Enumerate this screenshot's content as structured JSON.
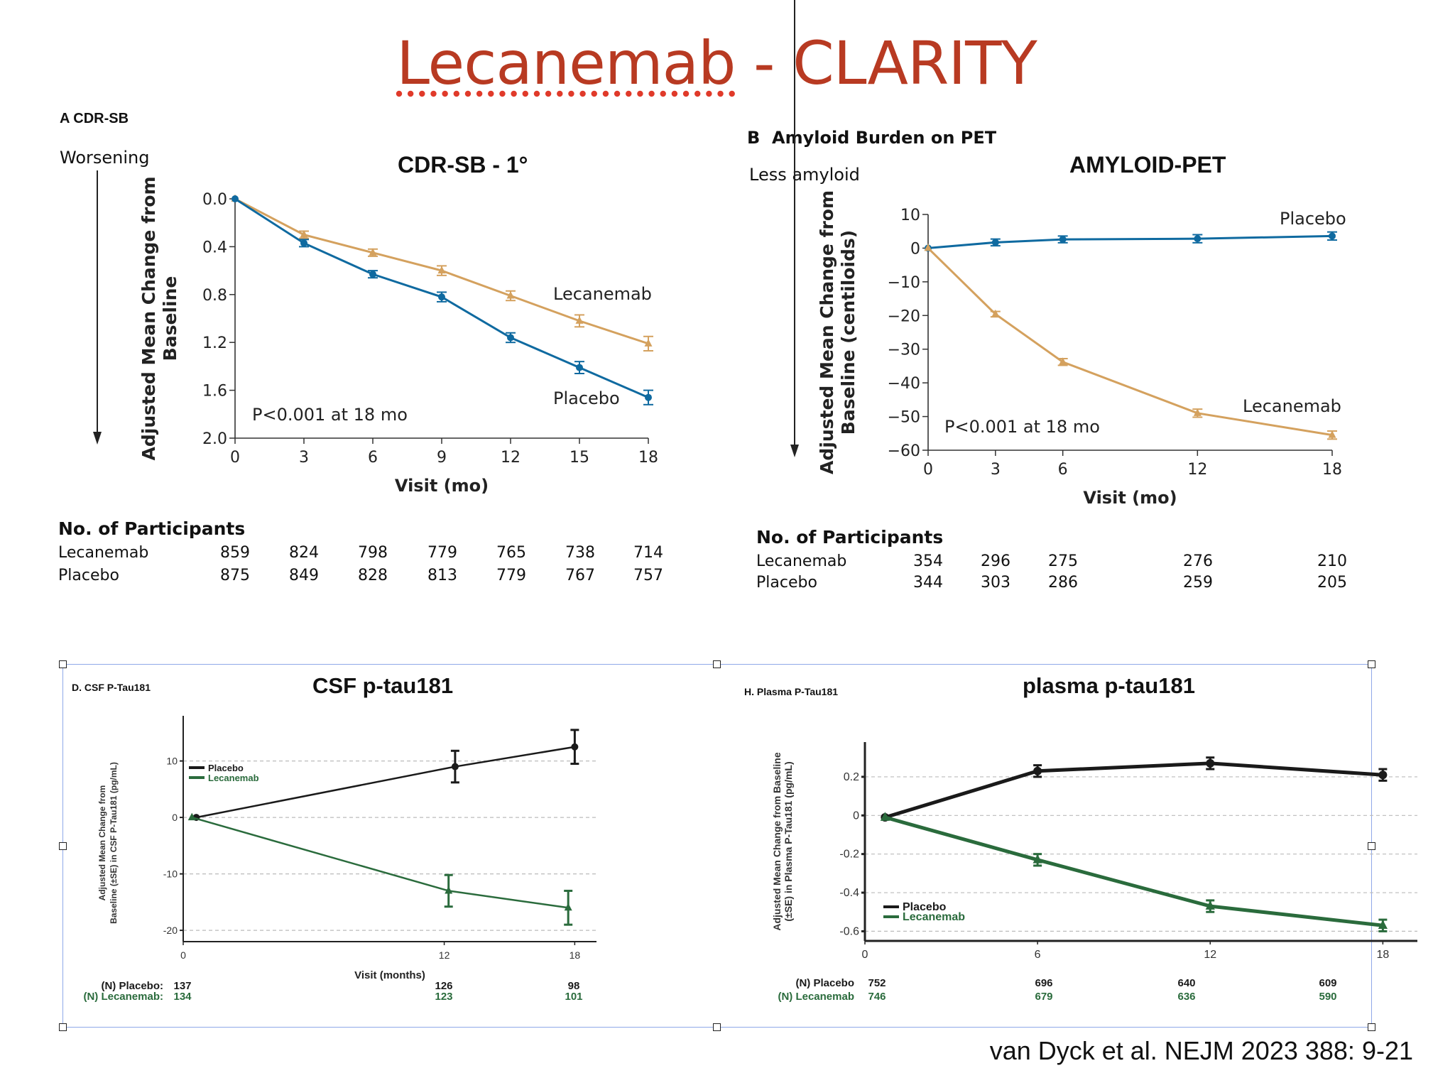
{
  "slide": {
    "title_part1": "Lecanemab",
    "title_part2": " - CLARITY",
    "citation": "van Dyck et al. NEJM 2023 388: 9-21"
  },
  "colors": {
    "title": "#b83a22",
    "lecanemab_nejm": "#d4a15e",
    "placebo_nejm": "#0f6aa0",
    "placebo_tau": "#1a1a1a",
    "lecanemab_tau": "#2a6b3c",
    "selection": "#8fa8e8"
  },
  "panelA": {
    "label": "A CDR-SB",
    "arrow_label": "Worsening",
    "participants": {
      "heading": "No. of Participants",
      "rows": [
        {
          "name": "Lecanemab",
          "values": [
            "859",
            "824",
            "798",
            "779",
            "765",
            "738",
            "714"
          ]
        },
        {
          "name": "Placebo",
          "values": [
            "875",
            "849",
            "828",
            "813",
            "779",
            "767",
            "757"
          ]
        }
      ]
    }
  },
  "panelB": {
    "label_letter": "B",
    "label_text": "Amyloid Burden on PET",
    "arrow_label": "Less amyloid",
    "participants": {
      "heading": "No. of Participants",
      "rows": [
        {
          "name": "Lecanemab",
          "values": [
            "354",
            "296",
            "275",
            "276",
            "210"
          ]
        },
        {
          "name": "Placebo",
          "values": [
            "344",
            "303",
            "286",
            "259",
            "205"
          ]
        }
      ]
    }
  },
  "panelD": {
    "label": "D. CSF P-Tau181",
    "n_rows": [
      {
        "name": "(N) Placebo:",
        "values": [
          "137",
          "126",
          "98"
        ]
      },
      {
        "name": "(N) Lecanemab:",
        "values": [
          "134",
          "123",
          "101"
        ]
      }
    ]
  },
  "panelH": {
    "label": "H. Plasma P-Tau181",
    "n_rows": [
      {
        "name": "(N) Placebo",
        "values": [
          "752",
          "696",
          "640",
          "609"
        ]
      },
      {
        "name": "(N) Lecanemab",
        "values": [
          "746",
          "679",
          "636",
          "590"
        ]
      }
    ]
  },
  "chart_data": [
    {
      "id": "cdrsb",
      "type": "line",
      "title": "CDR-SB - 1°",
      "xlabel": "Visit (mo)",
      "ylabel": "Adjusted Mean Change from Baseline",
      "x": [
        0,
        3,
        6,
        9,
        12,
        15,
        18
      ],
      "xticks": [
        "0",
        "3",
        "6",
        "9",
        "12",
        "15",
        "18"
      ],
      "yticks": [
        "0.0",
        "0.4",
        "0.8",
        "1.2",
        "1.6",
        "2.0"
      ],
      "ylim": [
        0.0,
        2.0
      ],
      "y_inverted": true,
      "annotation": "P<0.001 at 18 mo",
      "series": [
        {
          "name": "Lecanemab",
          "marker": "triangle",
          "values": [
            0.0,
            0.3,
            0.45,
            0.6,
            0.81,
            1.02,
            1.21
          ],
          "se": [
            0,
            0.03,
            0.03,
            0.04,
            0.04,
            0.05,
            0.06
          ]
        },
        {
          "name": "Placebo",
          "marker": "circle",
          "values": [
            0.0,
            0.37,
            0.63,
            0.82,
            1.16,
            1.41,
            1.66
          ],
          "se": [
            0,
            0.03,
            0.03,
            0.04,
            0.04,
            0.05,
            0.06
          ]
        }
      ],
      "legend": "inline-labels"
    },
    {
      "id": "amyloid",
      "type": "line",
      "title": "AMYLOID-PET",
      "xlabel": "Visit (mo)",
      "ylabel": "Adjusted Mean Change from Baseline (centiloids)",
      "x": [
        0,
        3,
        6,
        12,
        18
      ],
      "xticks": [
        "0",
        "3",
        "6",
        "12",
        "18"
      ],
      "yticks": [
        "10",
        "0",
        "−10",
        "−20",
        "−30",
        "−40",
        "−50",
        "−60"
      ],
      "ylim": [
        -60,
        10
      ],
      "annotation": "P<0.001 at 18 mo",
      "series": [
        {
          "name": "Placebo",
          "marker": "circle",
          "values": [
            0.0,
            1.7,
            2.6,
            2.8,
            3.6
          ],
          "se": [
            0,
            1.0,
            1.0,
            1.2,
            1.2
          ]
        },
        {
          "name": "Lecanemab",
          "marker": "triangle",
          "values": [
            0.0,
            -19.6,
            -33.8,
            -49.0,
            -55.5
          ],
          "se": [
            0,
            0.8,
            1.0,
            1.2,
            1.2
          ]
        }
      ],
      "legend": "inline-labels"
    },
    {
      "id": "csf",
      "type": "line",
      "title": "CSF p-tau181",
      "xlabel": "Visit (months)",
      "ylabel": "Adjusted Mean Change from Baseline (±SE) in CSF P-Tau181 (pg/mL)",
      "x_placebo": [
        0.6,
        12.5,
        18
      ],
      "x_lecanemab": [
        0.4,
        12.2,
        17.7
      ],
      "xticks": [
        "0",
        "12",
        "18"
      ],
      "yticks": [
        "10",
        "0",
        "-10",
        "-20"
      ],
      "ylim": [
        -22,
        18
      ],
      "xlim": [
        0,
        19
      ],
      "grid": true,
      "series": [
        {
          "name": "Placebo",
          "marker": "circle",
          "values": [
            0.0,
            9.0,
            12.5
          ],
          "se": [
            0,
            2.8,
            3.0
          ]
        },
        {
          "name": "Lecanemab",
          "marker": "triangle",
          "values": [
            0.0,
            -13.0,
            -16.0
          ],
          "se": [
            0,
            2.8,
            3.0
          ]
        }
      ],
      "legend": "top-left"
    },
    {
      "id": "plasma",
      "type": "line",
      "title": "plasma p-tau181",
      "xlabel": "",
      "ylabel": "Adjusted Mean Change from Baseline (±SE) in Plasma P-Tau181 (pg/mL)",
      "x": [
        0.7,
        6,
        12,
        18
      ],
      "xticks": [
        "0",
        "6",
        "12",
        "18"
      ],
      "yticks": [
        "0.2",
        "0",
        "-0.2",
        "-0.4",
        "-0.6"
      ],
      "ylim": [
        -0.65,
        0.38
      ],
      "xlim": [
        0,
        19.2
      ],
      "grid": true,
      "series": [
        {
          "name": "Placebo",
          "marker": "circle",
          "values": [
            -0.01,
            0.23,
            0.27,
            0.21
          ],
          "se": [
            0,
            0.03,
            0.03,
            0.03
          ]
        },
        {
          "name": "Lecanemab",
          "marker": "triangle",
          "values": [
            -0.01,
            -0.23,
            -0.47,
            -0.57
          ],
          "se": [
            0,
            0.03,
            0.03,
            0.03
          ]
        }
      ],
      "legend": "bottom-left"
    }
  ]
}
